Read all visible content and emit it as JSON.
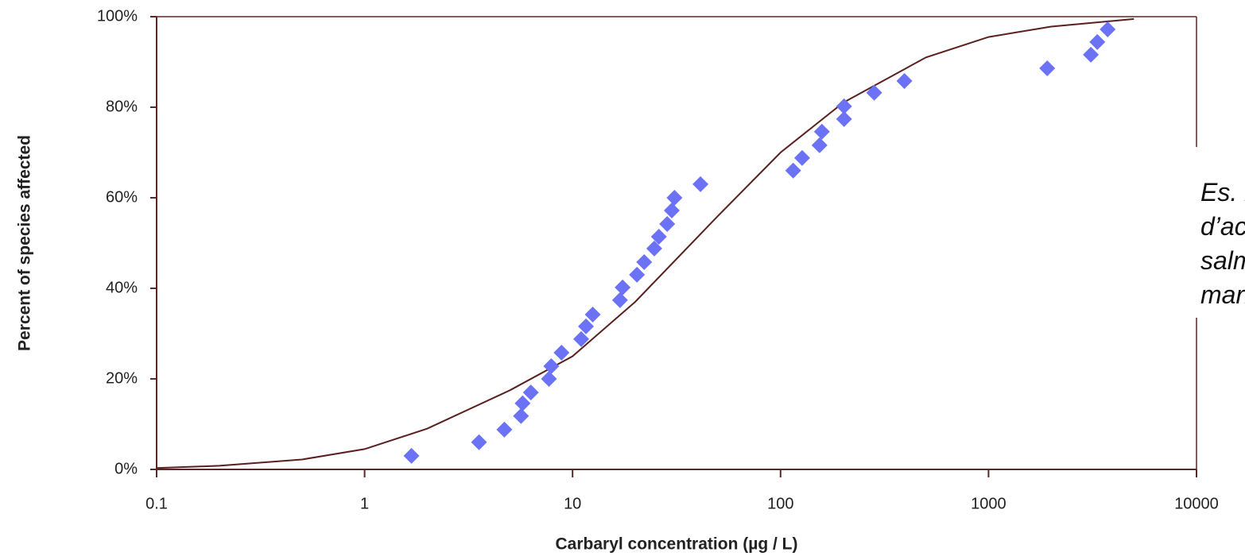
{
  "chart_data": {
    "type": "scatter",
    "ylabel": "Percent of species affected",
    "xlabel": "Carbaryl concentration (µg / L)",
    "xscale": "log",
    "xlim": [
      0.1,
      10000
    ],
    "xticks": [
      0.1,
      1,
      10,
      100,
      1000,
      10000
    ],
    "ylim": [
      0,
      100
    ],
    "yticks": [
      {
        "value": 0,
        "label": "0%"
      },
      {
        "value": 20,
        "label": "20%"
      },
      {
        "value": 40,
        "label": "40%"
      },
      {
        "value": 60,
        "label": "60%"
      },
      {
        "value": 80,
        "label": "80%"
      },
      {
        "value": 100,
        "label": "100%"
      }
    ],
    "axis_color": "#5a2626",
    "points": {
      "color": "#6b72f5",
      "x": [
        1.68,
        3.55,
        4.7,
        5.65,
        5.75,
        6.3,
        7.7,
        7.9,
        8.85,
        11.0,
        11.6,
        12.5,
        16.9,
        17.4,
        20.4,
        22.1,
        24.7,
        26.0,
        28.5,
        30,
        30.9,
        41.2,
        115,
        127,
        154,
        158,
        202,
        202,
        282,
        394,
        1915,
        3105,
        3335,
        3740
      ],
      "y": [
        3.0,
        6.0,
        8.8,
        11.8,
        14.6,
        17.0,
        20.0,
        22.8,
        25.8,
        28.8,
        31.6,
        34.2,
        37.4,
        40.2,
        43.0,
        45.8,
        48.8,
        51.4,
        54.2,
        57.2,
        60.0,
        63.0,
        66.0,
        68.8,
        71.6,
        74.6,
        77.4,
        80.2,
        83.2,
        85.8,
        88.6,
        91.6,
        94.4,
        97.2
      ]
    },
    "curve": {
      "color": "#5a1f1f",
      "x": [
        0.1,
        0.2,
        0.5,
        1,
        2,
        5,
        10,
        20,
        50,
        100,
        200,
        500,
        1000,
        2000,
        5000
      ],
      "y": [
        0.3,
        0.8,
        2.2,
        4.5,
        9,
        17.5,
        25,
        37,
        56,
        70,
        81,
        91,
        95.5,
        97.8,
        99.5
      ]
    },
    "annotation": [
      "Es. in",
      "d’acq",
      "salma",
      "marin"
    ]
  }
}
